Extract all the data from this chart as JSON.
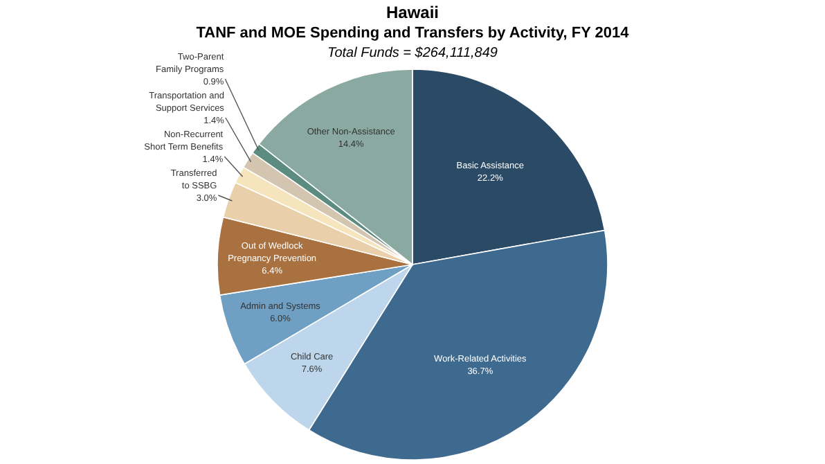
{
  "chart_data": {
    "type": "pie",
    "title": "Hawaii",
    "subtitle": "TANF and MOE Spending and Transfers by Activity, FY 2014",
    "annotations": [
      "Total Funds = $264,111,849"
    ],
    "categories": [
      "Basic Assistance",
      "Work-Related Activities",
      "Child Care",
      "Admin and Systems",
      "Out of Wedlock Pregnancy Prevention",
      "Transferred to SSBG",
      "Non-Recurrent Short Term Benefits",
      "Transportation and Support Services",
      "Two-Parent Family Programs",
      "Other Non-Assistance"
    ],
    "values": [
      22.2,
      36.7,
      7.6,
      6.0,
      6.4,
      3.0,
      1.4,
      1.4,
      0.9,
      14.4
    ],
    "value_labels": [
      "22.2%",
      "36.7%",
      "7.6%",
      "6.0%",
      "6.4%",
      "3.0%",
      "1.4%",
      "1.4%",
      "0.9%",
      "14.4%"
    ],
    "colors": [
      "#2b4a66",
      "#3f6a8f",
      "#bdd6eb",
      "#6f9fc2",
      "#a8713f",
      "#ead0aa",
      "#f5e4bc",
      "#d4c5b1",
      "#5c8c7f",
      "#8aaaa1"
    ]
  }
}
